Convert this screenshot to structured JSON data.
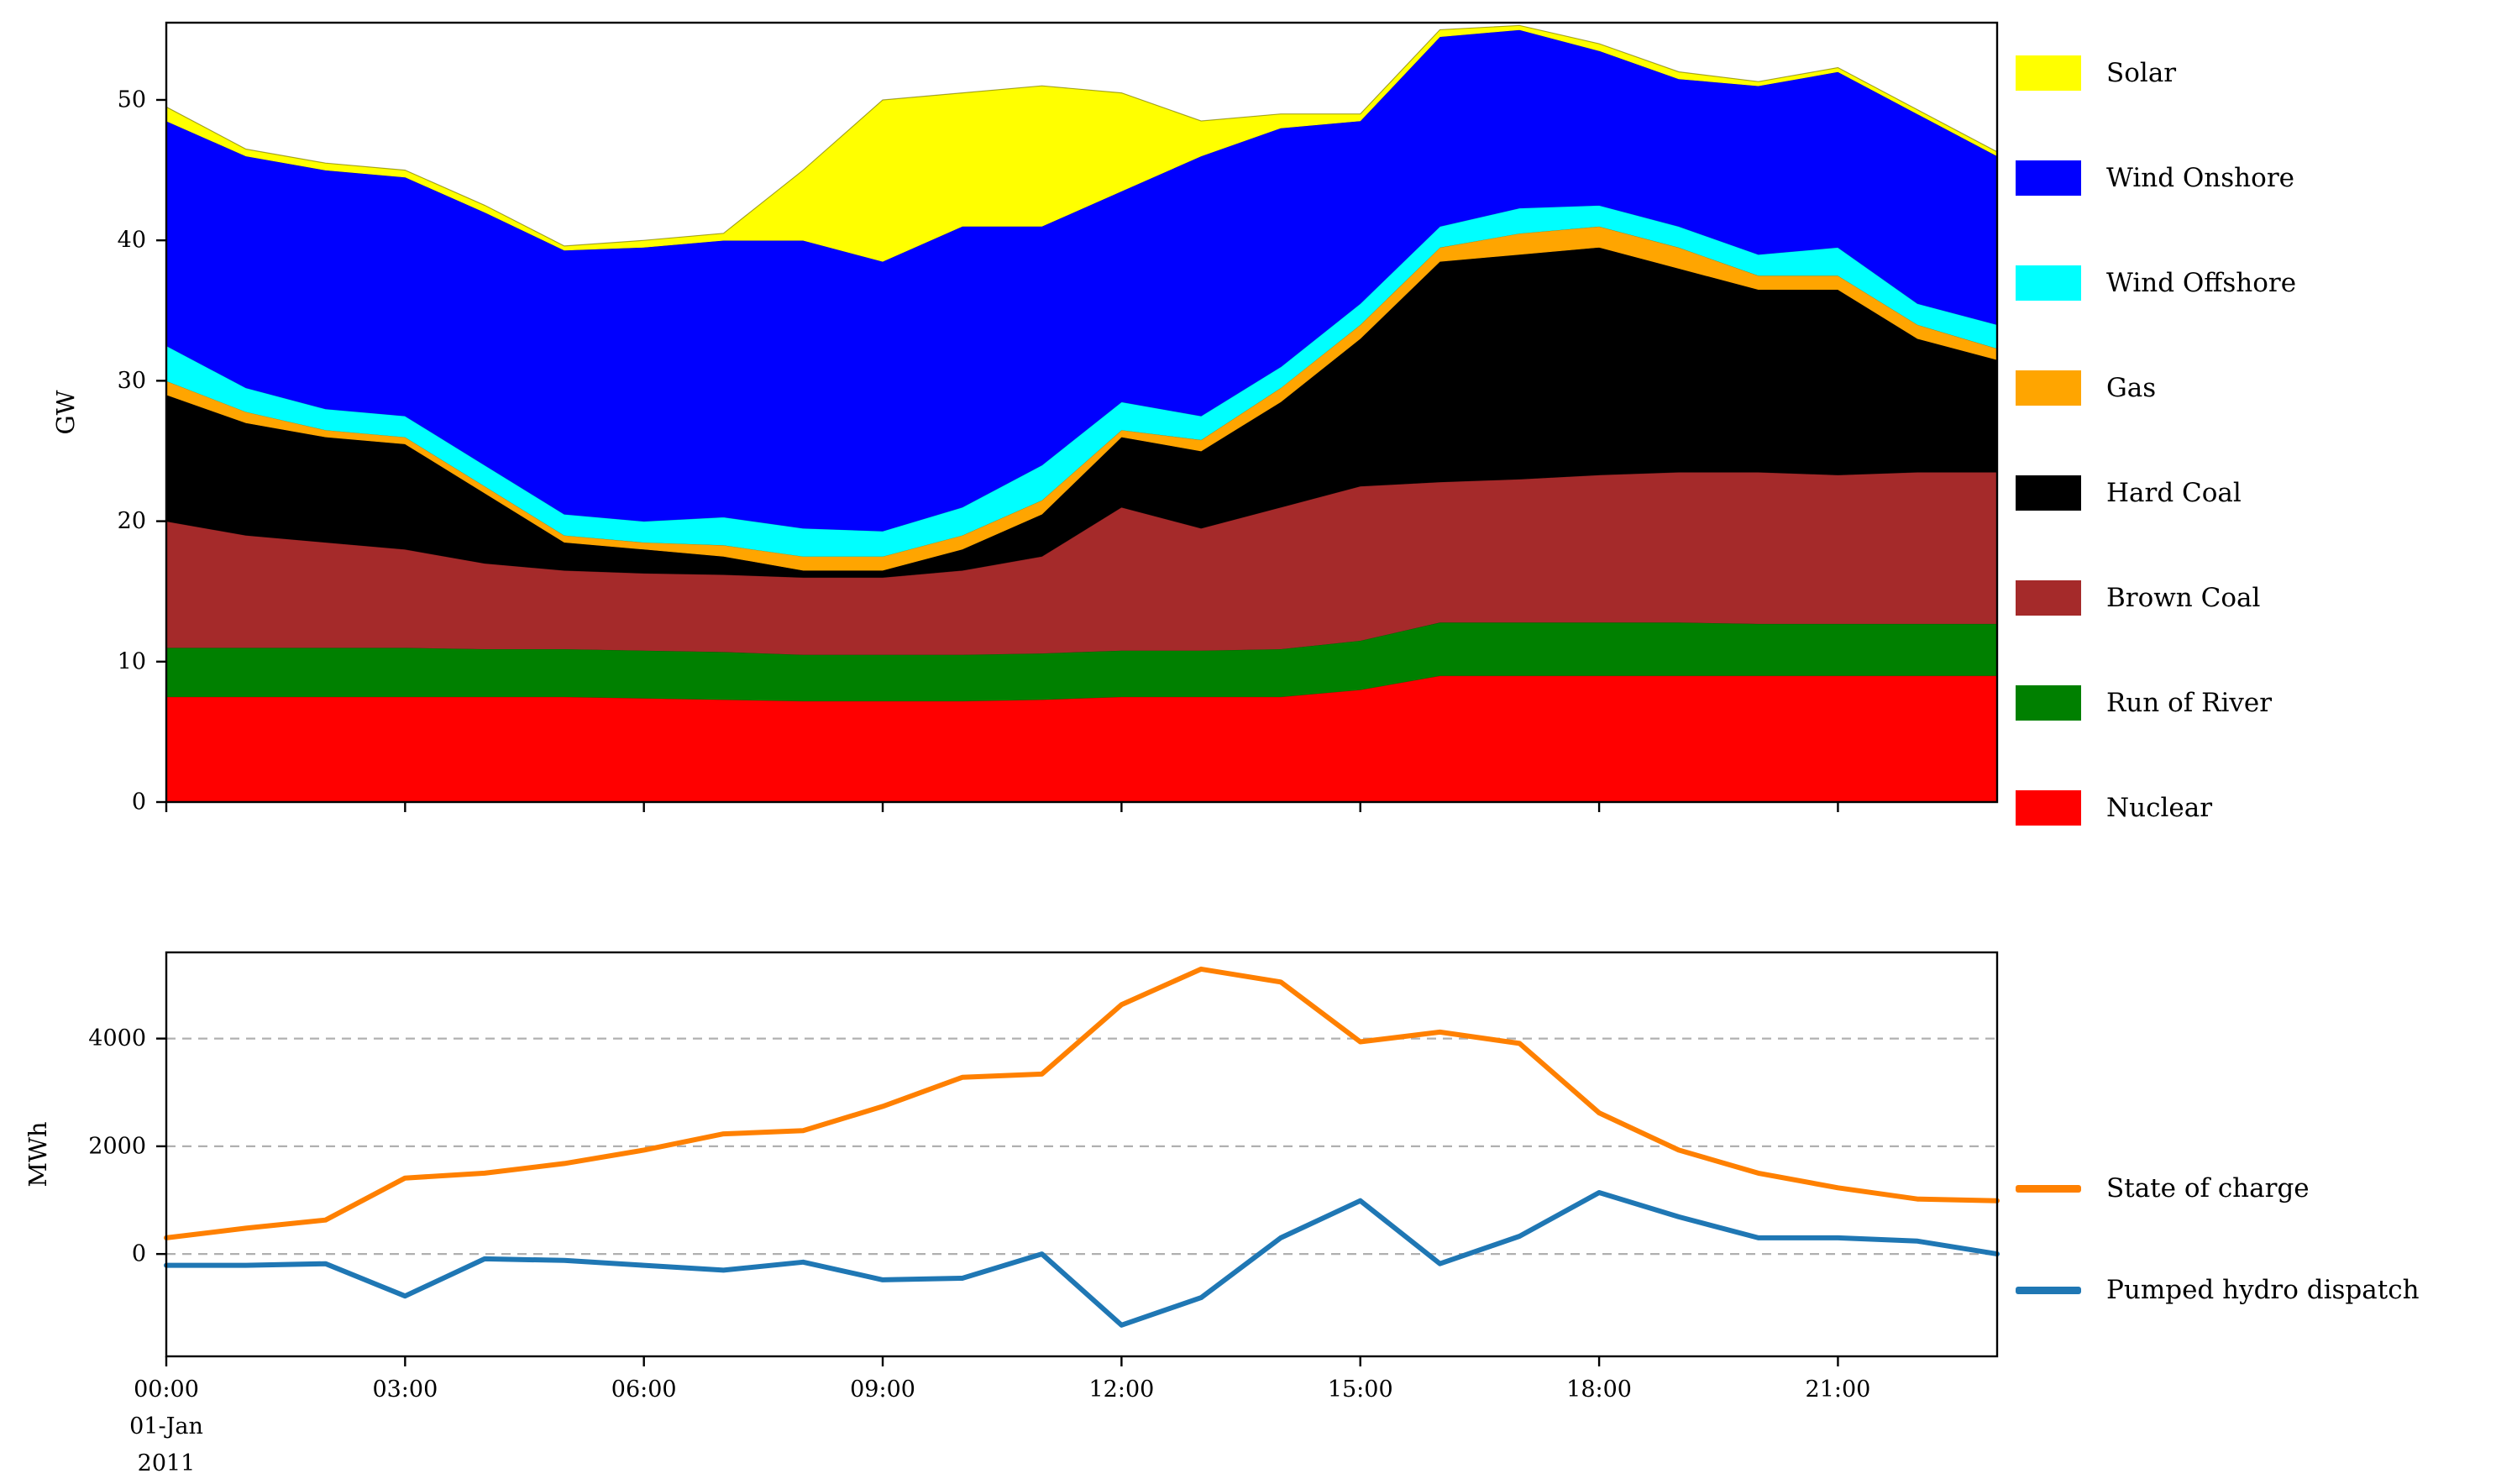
{
  "figure": {
    "background": "#ffffff"
  },
  "axes": {
    "top": {
      "ylabel": "GW"
    },
    "bottom": {
      "ylabel": "MWh",
      "x_date_lines": [
        "01-Jan",
        "2011"
      ]
    }
  },
  "legends": {
    "generation": [
      {
        "label": "Solar",
        "color": "#ffff00"
      },
      {
        "label": "Wind Onshore",
        "color": "#0000ff"
      },
      {
        "label": "Wind Offshore",
        "color": "#00ffff"
      },
      {
        "label": "Gas",
        "color": "#ffa500"
      },
      {
        "label": "Hard Coal",
        "color": "#000000"
      },
      {
        "label": "Brown Coal",
        "color": "#a52a2a"
      },
      {
        "label": "Run of River",
        "color": "#008000"
      },
      {
        "label": "Nuclear",
        "color": "#ff0000"
      }
    ],
    "storage": [
      {
        "label": "State of charge",
        "color": "#ff8000"
      },
      {
        "label": "Pumped hydro dispatch",
        "color": "#1f77b4"
      }
    ]
  },
  "chart_data": [
    {
      "type": "area",
      "stacked": true,
      "title": "",
      "ylabel": "GW",
      "ylim": [
        0,
        55.5
      ],
      "yticks": [
        0,
        10,
        20,
        30,
        40,
        50
      ],
      "ytick_labels": [
        "0",
        "10",
        "20",
        "30",
        "40",
        "50"
      ],
      "x_hours": [
        0,
        1,
        2,
        3,
        4,
        5,
        6,
        7,
        8,
        9,
        10,
        11,
        12,
        13,
        14,
        15,
        16,
        17,
        18,
        19,
        20,
        21,
        22,
        23
      ],
      "xticks": [
        0,
        3,
        6,
        9,
        12,
        15,
        18,
        21
      ],
      "grid": false,
      "legend_position": "right",
      "stack_order": "bottom_to_top",
      "series": [
        {
          "name": "Nuclear",
          "color": "#ff0000",
          "values": [
            7.5,
            7.5,
            7.5,
            7.5,
            7.5,
            7.5,
            7.4,
            7.3,
            7.2,
            7.2,
            7.2,
            7.3,
            7.5,
            7.5,
            7.5,
            8.0,
            9.0,
            9.0,
            9.0,
            9.0,
            9.0,
            9.0,
            9.0,
            9.0
          ]
        },
        {
          "name": "Run of River",
          "color": "#008000",
          "values": [
            3.5,
            3.5,
            3.5,
            3.5,
            3.4,
            3.4,
            3.4,
            3.4,
            3.3,
            3.3,
            3.3,
            3.3,
            3.3,
            3.3,
            3.4,
            3.5,
            3.8,
            3.8,
            3.8,
            3.8,
            3.7,
            3.7,
            3.7,
            3.7
          ]
        },
        {
          "name": "Brown Coal",
          "color": "#a52a2a",
          "values": [
            9.0,
            8.0,
            7.5,
            7.0,
            6.1,
            5.6,
            5.5,
            5.5,
            5.5,
            5.5,
            6.0,
            6.9,
            10.2,
            8.7,
            10.1,
            11.0,
            10.0,
            10.2,
            10.5,
            10.7,
            10.8,
            10.6,
            10.8,
            10.8
          ]
        },
        {
          "name": "Hard Coal",
          "color": "#000000",
          "values": [
            9.0,
            8.0,
            7.5,
            7.5,
            5.0,
            2.0,
            1.7,
            1.3,
            0.5,
            0.5,
            1.5,
            3.0,
            5.0,
            5.5,
            7.5,
            10.5,
            15.7,
            16.0,
            16.2,
            14.5,
            13.0,
            13.2,
            9.5,
            8.0
          ]
        },
        {
          "name": "Gas",
          "color": "#ffa500",
          "values": [
            1.0,
            0.8,
            0.5,
            0.5,
            0.5,
            0.5,
            0.5,
            0.8,
            1.0,
            1.0,
            1.0,
            1.0,
            0.5,
            0.8,
            1.0,
            1.0,
            1.0,
            1.5,
            1.5,
            1.5,
            1.0,
            1.0,
            1.0,
            0.8
          ]
        },
        {
          "name": "Wind Offshore",
          "color": "#00ffff",
          "values": [
            2.5,
            1.7,
            1.5,
            1.5,
            1.5,
            1.5,
            1.5,
            2.0,
            2.0,
            1.8,
            2.0,
            2.5,
            2.0,
            1.7,
            1.5,
            1.5,
            1.5,
            1.8,
            1.5,
            1.5,
            1.5,
            2.0,
            1.5,
            1.7
          ]
        },
        {
          "name": "Wind Onshore",
          "color": "#0000ff",
          "values": [
            16.0,
            16.5,
            17.0,
            17.0,
            18.0,
            18.8,
            19.5,
            19.7,
            20.5,
            19.2,
            20.0,
            17.0,
            15.0,
            18.5,
            17.0,
            13.0,
            13.5,
            12.7,
            11.0,
            10.5,
            12.0,
            12.5,
            13.5,
            12.0
          ]
        },
        {
          "name": "Solar",
          "color": "#ffff00",
          "values": [
            1.0,
            0.5,
            0.5,
            0.5,
            0.5,
            0.3,
            0.5,
            0.5,
            5.0,
            11.5,
            9.5,
            10.0,
            7.0,
            2.5,
            1.0,
            0.5,
            0.5,
            0.3,
            0.5,
            0.5,
            0.3,
            0.3,
            0.3,
            0.3
          ]
        }
      ]
    },
    {
      "type": "line",
      "title": "",
      "ylabel": "MWh",
      "ylim": [
        -1900,
        5600
      ],
      "yticks": [
        0,
        2000,
        4000
      ],
      "ytick_labels": [
        "0",
        "2000",
        "4000"
      ],
      "x_hours": [
        0,
        1,
        2,
        3,
        4,
        5,
        6,
        7,
        8,
        9,
        10,
        11,
        12,
        13,
        14,
        15,
        16,
        17,
        18,
        19,
        20,
        21,
        22,
        23
      ],
      "xticks": [
        0,
        3,
        6,
        9,
        12,
        15,
        18,
        21
      ],
      "xtick_labels": [
        "00:00",
        "03:00",
        "06:00",
        "09:00",
        "12:00",
        "15:00",
        "18:00",
        "21:00"
      ],
      "x_date_lines": [
        "01-Jan",
        "2011"
      ],
      "grid": true,
      "grid_style": "dashed",
      "legend_position": "right",
      "series": [
        {
          "name": "State of charge",
          "color": "#ff8000",
          "values": [
            300,
            480,
            630,
            1410,
            1500,
            1680,
            1930,
            2230,
            2290,
            2740,
            3280,
            3340,
            4630,
            5290,
            5050,
            3940,
            4120,
            3910,
            2620,
            1930,
            1500,
            1230,
            1020,
            990
          ]
        },
        {
          "name": "Pumped hydro dispatch",
          "color": "#1f77b4",
          "values": [
            -210,
            -210,
            -180,
            -780,
            -90,
            -120,
            -210,
            -300,
            -150,
            -480,
            -450,
            0,
            -1320,
            -810,
            300,
            990,
            -180,
            330,
            1140,
            690,
            300,
            300,
            240,
            0
          ]
        }
      ]
    }
  ]
}
